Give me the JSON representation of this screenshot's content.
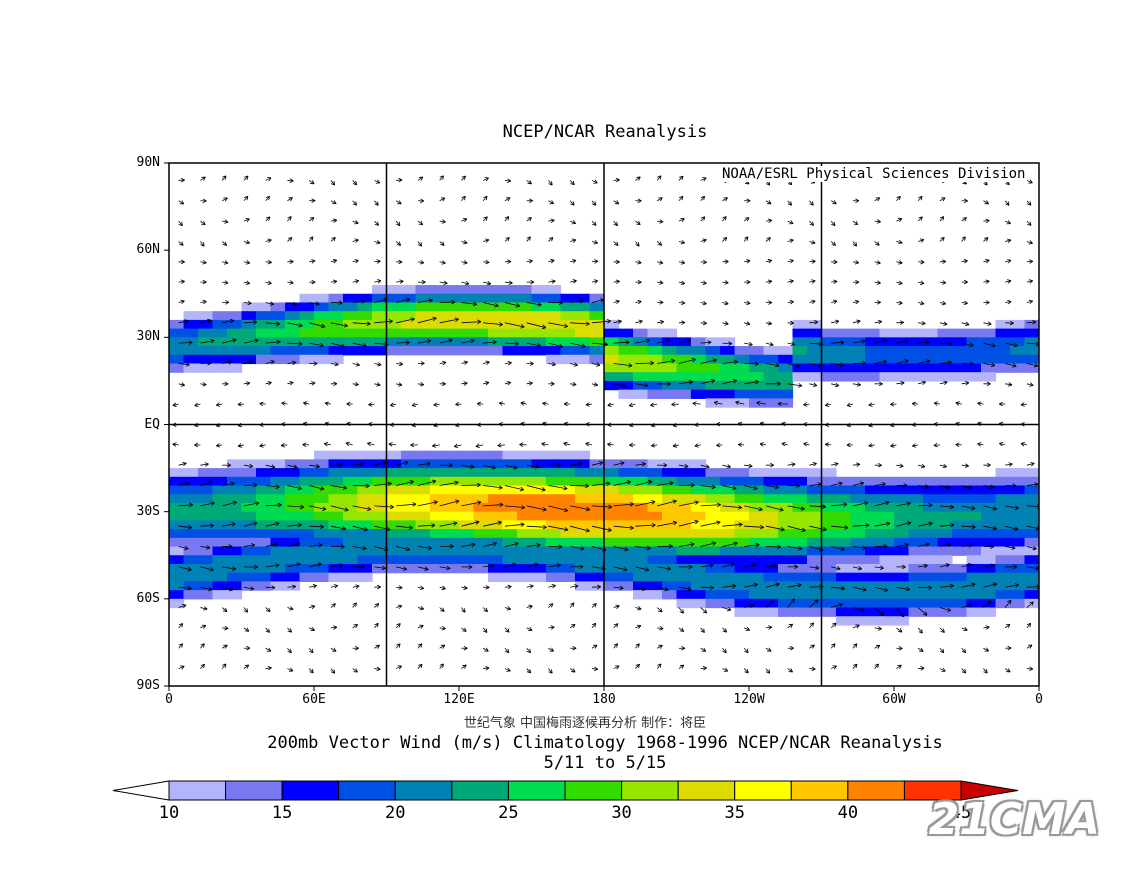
{
  "title": "NCEP/NCAR Reanalysis",
  "credit": "NOAA/ESRL Physical Sciences Division",
  "attribution": "世纪气象  中国梅雨逐候再分析  制作：将臣",
  "caption": {
    "line1": "200mb Vector Wind (m/s) Climatology 1968-1996 NCEP/NCAR Reanalysis",
    "line2": "5/11  to 5/15"
  },
  "watermark": "21CMA",
  "map": {
    "lat_labels": [
      "90N",
      "60N",
      "30N",
      "EQ",
      "30S",
      "60S",
      "90S"
    ],
    "lat_values": [
      90,
      60,
      30,
      0,
      -30,
      -60,
      -90
    ],
    "lon_labels": [
      "0",
      "60E",
      "120E",
      "180",
      "120W",
      "60W",
      "0"
    ],
    "lon_values": [
      0,
      60,
      120,
      180,
      240,
      300,
      360
    ],
    "grid_lon_values": [
      90,
      180,
      270
    ],
    "grid_lat_values": [
      0
    ],
    "wind_bands": [
      {
        "lat": 30,
        "speed": 32
      },
      {
        "lat": -30,
        "speed": 36
      },
      {
        "lat": -50,
        "speed": 22
      }
    ]
  },
  "colorbar": {
    "labels": [
      "10",
      "15",
      "20",
      "25",
      "30",
      "35",
      "40",
      "45"
    ],
    "levels": [
      10,
      12.5,
      15,
      17.5,
      20,
      22.5,
      25,
      27.5,
      30,
      32.5,
      35,
      37.5,
      40,
      42.5,
      45
    ],
    "colors": [
      "#b4b4fa",
      "#7878f0",
      "#0000ff",
      "#0050e6",
      "#0082b4",
      "#00aa78",
      "#00dc50",
      "#32dc00",
      "#96e600",
      "#dcdc00",
      "#ffff00",
      "#ffc800",
      "#ff8200",
      "#ff3200",
      "#c80000"
    ],
    "low_color": "#ffffff",
    "high_color": "#c80000"
  }
}
